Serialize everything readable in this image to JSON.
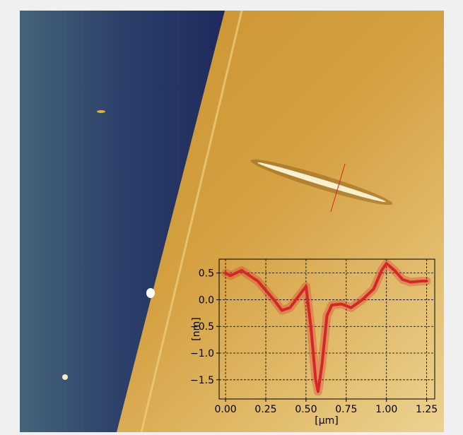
{
  "chart_data": {
    "type": "line",
    "xlabel": "[μm]",
    "ylabel": "[nm]",
    "x": [
      0.0,
      0.03,
      0.1,
      0.2,
      0.3,
      0.35,
      0.4,
      0.45,
      0.5,
      0.53,
      0.56,
      0.575,
      0.6,
      0.63,
      0.66,
      0.72,
      0.78,
      0.85,
      0.92,
      0.97,
      1.0,
      1.05,
      1.1,
      1.15,
      1.22,
      1.25
    ],
    "values": [
      0.5,
      0.45,
      0.55,
      0.35,
      0.0,
      -0.2,
      -0.15,
      0.05,
      0.25,
      -0.5,
      -1.5,
      -1.72,
      -1.2,
      -0.3,
      -0.1,
      -0.08,
      -0.15,
      0.0,
      0.2,
      0.55,
      0.68,
      0.55,
      0.38,
      0.33,
      0.35,
      0.35
    ],
    "color": "#d62728",
    "xlim": [
      -0.04,
      1.3
    ],
    "ylim": [
      -1.86,
      0.76
    ],
    "xticks": [
      {
        "value": 0,
        "label": "0.00"
      },
      {
        "value": 0.25,
        "label": "0.25"
      },
      {
        "value": 0.5,
        "label": "0.50"
      },
      {
        "value": 0.75,
        "label": "0.75"
      },
      {
        "value": 1,
        "label": "1.00"
      },
      {
        "value": 1.25,
        "label": "1.25"
      }
    ],
    "yticks": [
      {
        "value": 0.5,
        "label": "0.5"
      },
      {
        "value": 0,
        "label": "0.0"
      },
      {
        "value": -0.5,
        "label": "−0.5"
      },
      {
        "value": -1,
        "label": "−1.0"
      },
      {
        "value": -1.5,
        "label": "−1.5"
      }
    ],
    "grid": true
  }
}
